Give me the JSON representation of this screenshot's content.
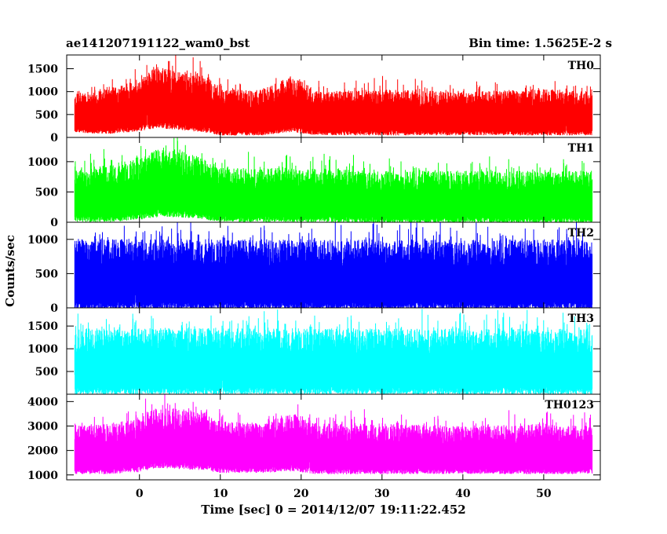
{
  "header": {
    "title": "ae141207191122_wam0_bst",
    "bin_time": "Bin time: 1.5625E-2 s"
  },
  "chart_data": {
    "type": "line",
    "xlabel": "Time [sec] 0 = 2014/12/07 19:11:22.452",
    "ylabel": "Counts/sec",
    "xlim": [
      -9,
      57
    ],
    "xticks": [
      0,
      10,
      20,
      30,
      40,
      50
    ],
    "data_range": [
      -8,
      56
    ],
    "panels": [
      {
        "name": "TH0",
        "color": "#ff0000",
        "ylim": [
          0,
          1800
        ],
        "yticks": [
          0,
          500,
          1000,
          1500
        ],
        "x": [
          -8,
          -4,
          0,
          2,
          5,
          8,
          10,
          15,
          19,
          20,
          22,
          30,
          40,
          50,
          56
        ],
        "upper": [
          950,
          1100,
          1250,
          1550,
          1450,
          1400,
          1050,
          1050,
          1350,
          1250,
          1000,
          1050,
          1000,
          1050,
          1000
        ],
        "lower": [
          200,
          180,
          250,
          350,
          300,
          250,
          150,
          150,
          250,
          200,
          150,
          150,
          150,
          150,
          150
        ]
      },
      {
        "name": "TH1",
        "color": "#00ff00",
        "ylim": [
          0,
          1400
        ],
        "yticks": [
          0,
          500,
          1000
        ],
        "x": [
          -8,
          -4,
          0,
          2,
          5,
          8,
          10,
          20,
          30,
          40,
          50,
          56
        ],
        "upper": [
          850,
          950,
          1050,
          1200,
          1200,
          1050,
          900,
          900,
          850,
          850,
          850,
          850
        ],
        "lower": [
          100,
          100,
          150,
          200,
          200,
          150,
          100,
          100,
          80,
          80,
          80,
          80
        ]
      },
      {
        "name": "TH2",
        "color": "#0000ff",
        "ylim": [
          0,
          1250
        ],
        "yticks": [
          0,
          500,
          1000
        ],
        "x": [
          -8,
          56
        ],
        "upper": [
          1000,
          1000
        ],
        "lower": [
          80,
          80
        ]
      },
      {
        "name": "TH3",
        "color": "#00ffff",
        "ylim": [
          0,
          1900
        ],
        "yticks": [
          500,
          1000,
          1500
        ],
        "x": [
          -8,
          56
        ],
        "upper": [
          1450,
          1450
        ],
        "lower": [
          150,
          150
        ]
      },
      {
        "name": "TH0123",
        "color": "#ff00ff",
        "ylim": [
          800,
          4300
        ],
        "yticks": [
          1000,
          2000,
          3000,
          4000
        ],
        "x": [
          -8,
          -4,
          0,
          2,
          5,
          8,
          10,
          15,
          19,
          20,
          22,
          30,
          40,
          50,
          56
        ],
        "upper": [
          3000,
          3100,
          3300,
          3800,
          3700,
          3600,
          3200,
          3100,
          3500,
          3400,
          3100,
          3100,
          3000,
          3100,
          3000
        ],
        "lower": [
          1250,
          1250,
          1350,
          1550,
          1500,
          1450,
          1300,
          1300,
          1400,
          1350,
          1250,
          1250,
          1250,
          1250,
          1250
        ]
      }
    ]
  }
}
